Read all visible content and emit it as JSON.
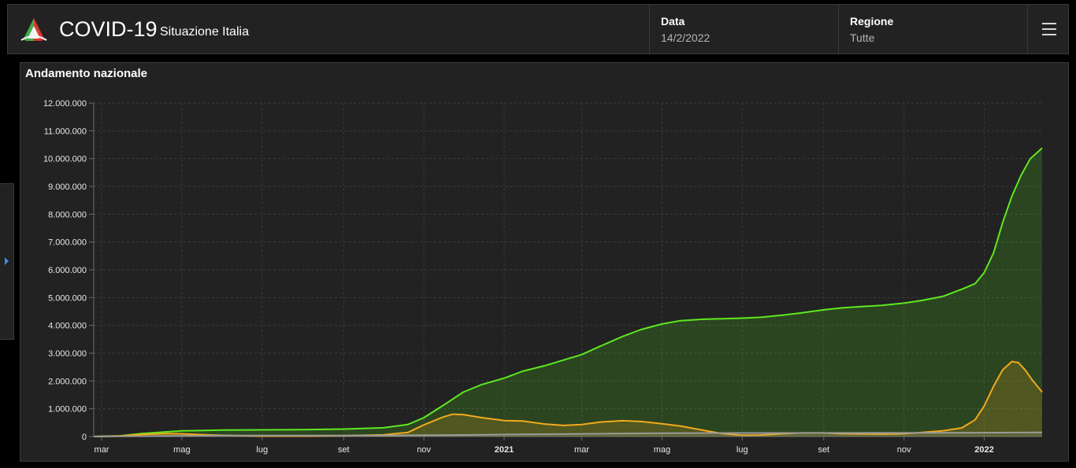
{
  "header": {
    "title": "COVID-19",
    "subtitle": "Situazione Italia",
    "logo_icon": "italy-flag-logo-icon",
    "date_label": "Data",
    "date_value": "14/2/2022",
    "region_label": "Regione",
    "region_value": "Tutte",
    "menu_icon": "hamburger-menu-icon"
  },
  "sidebar_toggle_icon": "caret-right-icon",
  "panel": {
    "title": "Andamento nazionale"
  },
  "colors": {
    "background": "#000000",
    "panel": "#222222",
    "total_cases_line": "#5ee81f",
    "positives_line": "#f2aa1c",
    "third_series_line": "#9a9a9a",
    "accent": "#3b8be0"
  },
  "chart_data": {
    "type": "area",
    "title": "",
    "xlabel": "",
    "ylabel": "",
    "ylim": [
      0,
      12000000
    ],
    "yticks": [
      0,
      1000000,
      2000000,
      3000000,
      4000000,
      5000000,
      6000000,
      7000000,
      8000000,
      9000000,
      10000000,
      11000000,
      12000000
    ],
    "ytick_labels": [
      "0",
      "1.000.000",
      "2.000.000",
      "3.000.000",
      "4.000.000",
      "5.000.000",
      "6.000.000",
      "7.000.000",
      "8.000.000",
      "9.000.000",
      "10.000.000",
      "11.000.000",
      "12.000.000"
    ],
    "xlim": [
      "2020-02-24",
      "2022-02-14"
    ],
    "xticks": [
      {
        "date": "2020-03-01",
        "label": "mar",
        "bold": false
      },
      {
        "date": "2020-05-01",
        "label": "mag",
        "bold": false
      },
      {
        "date": "2020-07-01",
        "label": "lug",
        "bold": false
      },
      {
        "date": "2020-09-01",
        "label": "set",
        "bold": false
      },
      {
        "date": "2020-11-01",
        "label": "nov",
        "bold": false
      },
      {
        "date": "2021-01-01",
        "label": "2021",
        "bold": true
      },
      {
        "date": "2021-03-01",
        "label": "mar",
        "bold": false
      },
      {
        "date": "2021-05-01",
        "label": "mag",
        "bold": false
      },
      {
        "date": "2021-07-01",
        "label": "lug",
        "bold": false
      },
      {
        "date": "2021-09-01",
        "label": "set",
        "bold": false
      },
      {
        "date": "2021-11-01",
        "label": "nov",
        "bold": false
      },
      {
        "date": "2022-01-01",
        "label": "2022",
        "bold": true
      }
    ],
    "grid": true,
    "legend": "none",
    "series": [
      {
        "color": "#5ee81f",
        "fill": true,
        "points": [
          [
            "2020-02-24",
            0
          ],
          [
            "2020-03-15",
            25000
          ],
          [
            "2020-04-01",
            110000
          ],
          [
            "2020-05-01",
            205000
          ],
          [
            "2020-06-01",
            233000
          ],
          [
            "2020-07-01",
            240000
          ],
          [
            "2020-08-01",
            248000
          ],
          [
            "2020-09-01",
            270000
          ],
          [
            "2020-10-01",
            314000
          ],
          [
            "2020-10-20",
            435000
          ],
          [
            "2020-11-01",
            680000
          ],
          [
            "2020-11-15",
            1100000
          ],
          [
            "2020-12-01",
            1600000
          ],
          [
            "2020-12-15",
            1870000
          ],
          [
            "2021-01-01",
            2100000
          ],
          [
            "2021-01-15",
            2350000
          ],
          [
            "2021-02-01",
            2550000
          ],
          [
            "2021-02-15",
            2750000
          ],
          [
            "2021-03-01",
            2950000
          ],
          [
            "2021-03-15",
            3250000
          ],
          [
            "2021-04-01",
            3600000
          ],
          [
            "2021-04-15",
            3850000
          ],
          [
            "2021-05-01",
            4050000
          ],
          [
            "2021-05-15",
            4170000
          ],
          [
            "2021-06-01",
            4220000
          ],
          [
            "2021-06-15",
            4240000
          ],
          [
            "2021-07-01",
            4260000
          ],
          [
            "2021-07-15",
            4290000
          ],
          [
            "2021-08-01",
            4370000
          ],
          [
            "2021-08-15",
            4450000
          ],
          [
            "2021-09-01",
            4560000
          ],
          [
            "2021-09-15",
            4630000
          ],
          [
            "2021-10-01",
            4680000
          ],
          [
            "2021-10-15",
            4720000
          ],
          [
            "2021-11-01",
            4800000
          ],
          [
            "2021-11-15",
            4900000
          ],
          [
            "2021-12-01",
            5050000
          ],
          [
            "2021-12-15",
            5300000
          ],
          [
            "2021-12-25",
            5500000
          ],
          [
            "2022-01-01",
            5900000
          ],
          [
            "2022-01-08",
            6600000
          ],
          [
            "2022-01-15",
            7700000
          ],
          [
            "2022-01-22",
            8650000
          ],
          [
            "2022-01-29",
            9400000
          ],
          [
            "2022-02-05",
            10000000
          ],
          [
            "2022-02-14",
            10380000
          ]
        ]
      },
      {
        "color": "#f2aa1c",
        "fill": true,
        "points": [
          [
            "2020-02-24",
            0
          ],
          [
            "2020-03-15",
            20000
          ],
          [
            "2020-04-01",
            80000
          ],
          [
            "2020-04-20",
            108000
          ],
          [
            "2020-05-01",
            100000
          ],
          [
            "2020-05-20",
            60000
          ],
          [
            "2020-06-10",
            30000
          ],
          [
            "2020-07-01",
            15000
          ],
          [
            "2020-08-01",
            13000
          ],
          [
            "2020-09-01",
            27000
          ],
          [
            "2020-10-01",
            60000
          ],
          [
            "2020-10-20",
            150000
          ],
          [
            "2020-11-01",
            420000
          ],
          [
            "2020-11-15",
            690000
          ],
          [
            "2020-11-23",
            805000
          ],
          [
            "2020-12-01",
            790000
          ],
          [
            "2020-12-15",
            680000
          ],
          [
            "2021-01-01",
            575000
          ],
          [
            "2021-01-15",
            560000
          ],
          [
            "2021-02-01",
            450000
          ],
          [
            "2021-02-15",
            400000
          ],
          [
            "2021-03-01",
            430000
          ],
          [
            "2021-03-15",
            520000
          ],
          [
            "2021-04-01",
            570000
          ],
          [
            "2021-04-15",
            540000
          ],
          [
            "2021-05-01",
            460000
          ],
          [
            "2021-05-15",
            380000
          ],
          [
            "2021-06-01",
            230000
          ],
          [
            "2021-06-15",
            110000
          ],
          [
            "2021-07-01",
            45000
          ],
          [
            "2021-07-15",
            55000
          ],
          [
            "2021-08-01",
            100000
          ],
          [
            "2021-08-15",
            130000
          ],
          [
            "2021-09-01",
            130000
          ],
          [
            "2021-09-15",
            100000
          ],
          [
            "2021-10-01",
            90000
          ],
          [
            "2021-10-15",
            85000
          ],
          [
            "2021-11-01",
            100000
          ],
          [
            "2021-11-15",
            150000
          ],
          [
            "2021-12-01",
            210000
          ],
          [
            "2021-12-15",
            310000
          ],
          [
            "2021-12-25",
            600000
          ],
          [
            "2022-01-01",
            1100000
          ],
          [
            "2022-01-08",
            1800000
          ],
          [
            "2022-01-15",
            2400000
          ],
          [
            "2022-01-22",
            2700000
          ],
          [
            "2022-01-27",
            2660000
          ],
          [
            "2022-02-01",
            2400000
          ],
          [
            "2022-02-07",
            2000000
          ],
          [
            "2022-02-14",
            1600000
          ]
        ]
      },
      {
        "color": "#9a9a9a",
        "fill": true,
        "points": [
          [
            "2020-02-24",
            0
          ],
          [
            "2020-04-01",
            13000
          ],
          [
            "2020-06-01",
            34000
          ],
          [
            "2020-10-01",
            36000
          ],
          [
            "2020-12-01",
            58000
          ],
          [
            "2021-01-01",
            74000
          ],
          [
            "2021-03-01",
            97000
          ],
          [
            "2021-05-01",
            122000
          ],
          [
            "2021-07-01",
            128000
          ],
          [
            "2021-10-01",
            131000
          ],
          [
            "2021-12-01",
            134000
          ],
          [
            "2022-02-14",
            150000
          ]
        ]
      }
    ]
  }
}
